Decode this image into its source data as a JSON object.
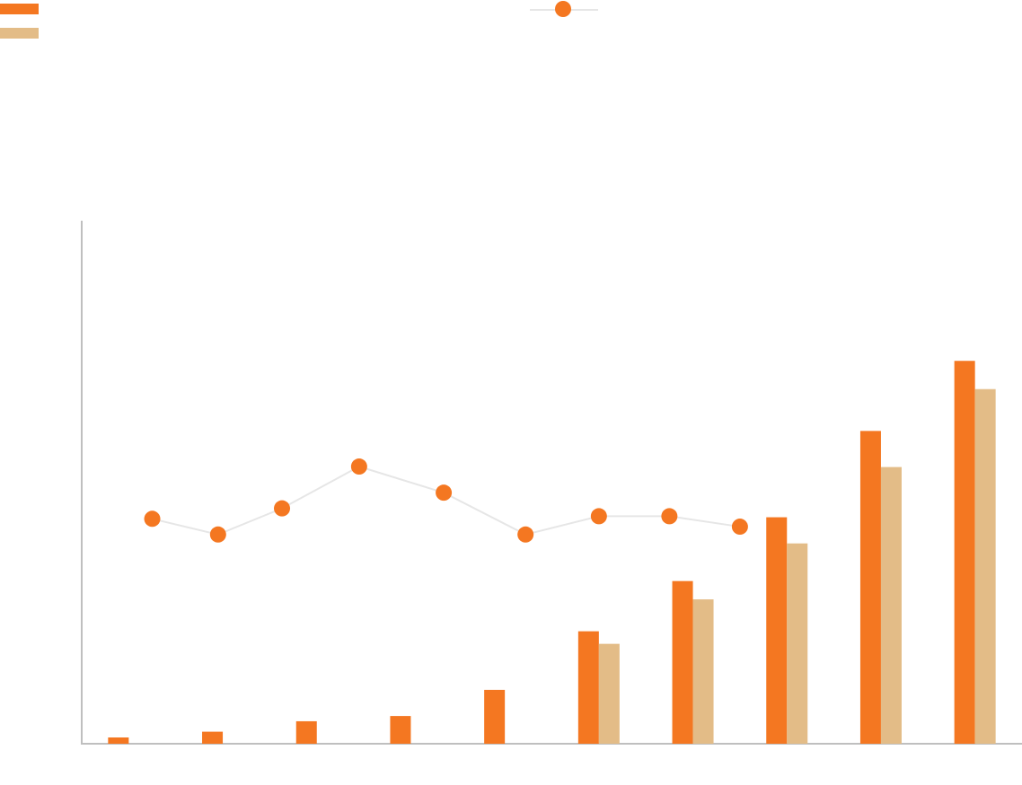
{
  "colors": {
    "series_primary": "#F47721",
    "series_secondary": "#E3BC87",
    "line_stroke": "#E6E6E6",
    "axis": "#BFBFBF",
    "background": "#FFFFFF"
  },
  "chart_data": {
    "type": "bar",
    "title": "",
    "xlabel": "",
    "ylabel": "",
    "ylim": [
      0,
      100
    ],
    "legend_position": "top",
    "categories": [
      "",
      "",
      "",
      "",
      "",
      "",
      "",
      "",
      "",
      ""
    ],
    "series": [
      {
        "type": "bar",
        "color": "#F47721",
        "values": [
          1.2,
          2.3,
          4.3,
          5.3,
          10.3,
          21.5,
          31.1,
          43.3,
          59.8,
          73.2
        ]
      },
      {
        "type": "bar",
        "color": "#E3BC87",
        "values": [
          null,
          null,
          null,
          null,
          null,
          19.1,
          27.6,
          38.3,
          52.9,
          67.8
        ]
      },
      {
        "type": "line",
        "color": "#F47721",
        "scale": "secondary",
        "ylim": [
          0,
          100
        ],
        "x": [
          0.75,
          1.45,
          2.13,
          2.95,
          3.85,
          4.72,
          5.5,
          6.25,
          7.0
        ],
        "values": [
          43,
          40,
          45,
          53,
          48,
          40,
          43.5,
          43.5,
          41.5
        ]
      }
    ]
  }
}
